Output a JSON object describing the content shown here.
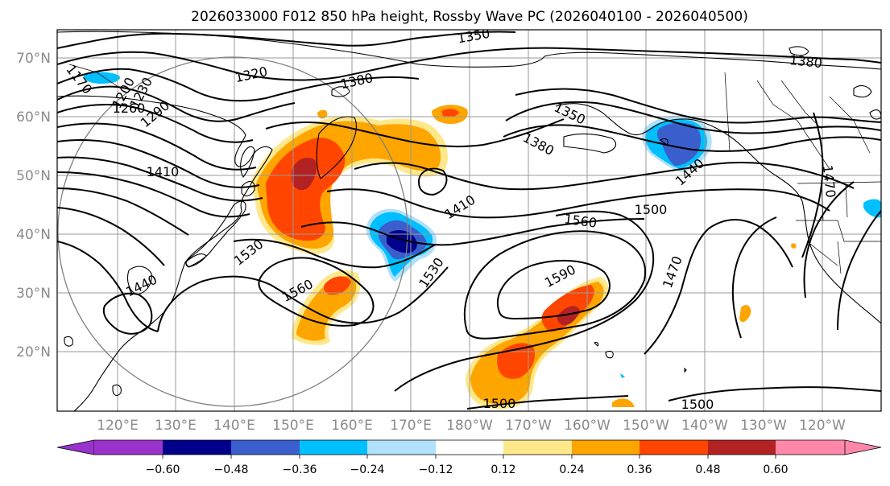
{
  "title": "2026033000 F012 850 hPa height, Rossby Wave PC (2026040100 - 2026040500)",
  "lat_labels": [
    "70°N",
    "60°N",
    "50°N",
    "40°N",
    "30°N",
    "20°N"
  ],
  "lon_labels": [
    "120°E",
    "130°E",
    "140°E",
    "150°E",
    "160°E",
    "170°E",
    "180°W",
    "170°W",
    "160°W",
    "150°W",
    "140°W",
    "130°W",
    "120°W"
  ],
  "contour_labels": [
    "1350",
    "1380",
    "1320",
    "1380",
    "1170",
    "1200",
    "1230",
    "1260",
    "1290",
    "1410",
    "1350",
    "1380",
    "1410",
    "1440",
    "1470",
    "1500",
    "1560",
    "1590",
    "1530",
    "1560",
    "1530",
    "1440",
    "1470",
    "1500",
    "1500"
  ],
  "colorbar": {
    "ticks": [
      "−0.60",
      "−0.48",
      "−0.36",
      "−0.24",
      "−0.12",
      "0.12",
      "0.24",
      "0.36",
      "0.48",
      "0.60"
    ],
    "colors": [
      "#9933cc",
      "#00008b",
      "#3a5fcd",
      "#00bfff",
      "#b0e0fa",
      "#ffffff",
      "#ffe88a",
      "#ffa500",
      "#ff4500",
      "#b22222",
      "#ff88aa"
    ]
  },
  "fills": {
    "yellow": "#ffe88a",
    "orange": "#ffa500",
    "red": "#ff4500",
    "darkred": "#b22222",
    "lightblue": "#b0e0fa",
    "cyan": "#00bfff",
    "blue": "#3a5fcd",
    "navy": "#00008b"
  }
}
